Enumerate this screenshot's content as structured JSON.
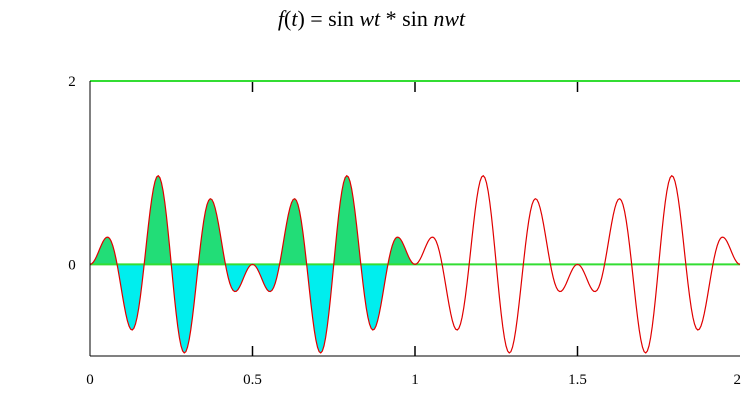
{
  "title": {
    "f": "f",
    "open": "(",
    "t": "t",
    "close": ")",
    "eq": " = sin ",
    "wt1": "wt",
    "mid": " * sin ",
    "nwt": "nwt"
  },
  "chart_data": {
    "type": "line",
    "title": "f(t) = sin wt * sin nwt",
    "xlabel": "",
    "ylabel": "",
    "xlim": [
      0,
      2
    ],
    "ylim": [
      -1,
      2
    ],
    "x_ticks": [
      0,
      0.5,
      1,
      1.5,
      2
    ],
    "x_tick_labels": [
      "0",
      "0.5",
      "1",
      "1.5",
      "2"
    ],
    "y_tick_labels": [
      "2",
      "0"
    ],
    "y_tick_values": [
      2,
      0
    ],
    "grid": false,
    "series": [
      {
        "function": "sin(2*pi*t) * sin(12*pi*t)",
        "samples": 401,
        "color": "#e00000"
      }
    ],
    "reference_lines": [
      {
        "y": 0,
        "color": "#33dd33"
      },
      {
        "y": 2,
        "color": "#33dd33"
      }
    ],
    "fills": {
      "positive_color": "#22dd77",
      "negative_color": "#00eeee",
      "x_range": [
        0,
        1
      ]
    }
  }
}
